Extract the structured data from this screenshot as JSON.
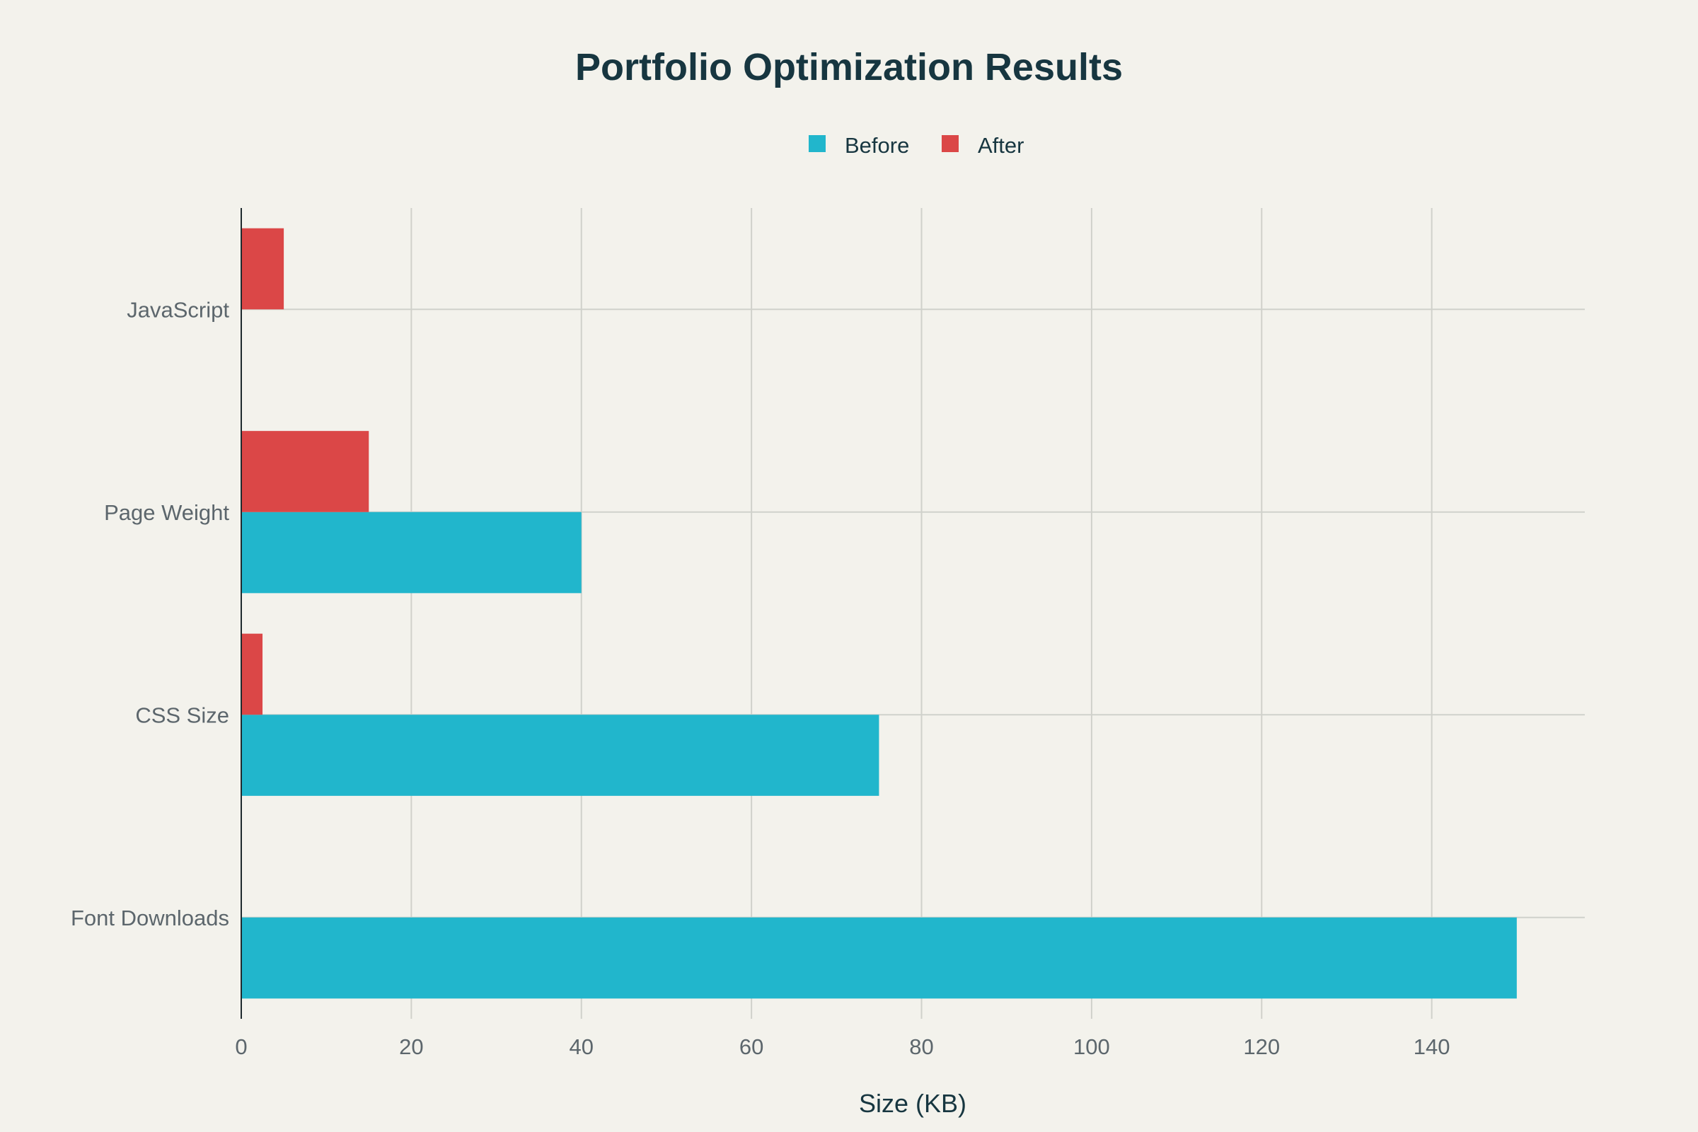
{
  "chart_data": {
    "type": "bar",
    "orientation": "horizontal",
    "title": "Portfolio Optimization Results",
    "xlabel": "Size (KB)",
    "ylabel": "",
    "categories": [
      "JavaScript",
      "Page Weight",
      "CSS Size",
      "Font Downloads"
    ],
    "series": [
      {
        "name": "Before",
        "color": "#21b6cc",
        "values": [
          0,
          40,
          75,
          150
        ]
      },
      {
        "name": "After",
        "color": "#db4747",
        "values": [
          5,
          15,
          2.5,
          0
        ]
      }
    ],
    "xlim": [
      0,
      158
    ],
    "xticks": [
      0,
      20,
      40,
      60,
      80,
      100,
      120,
      140
    ],
    "grid": true,
    "legend_position": "top-center"
  }
}
